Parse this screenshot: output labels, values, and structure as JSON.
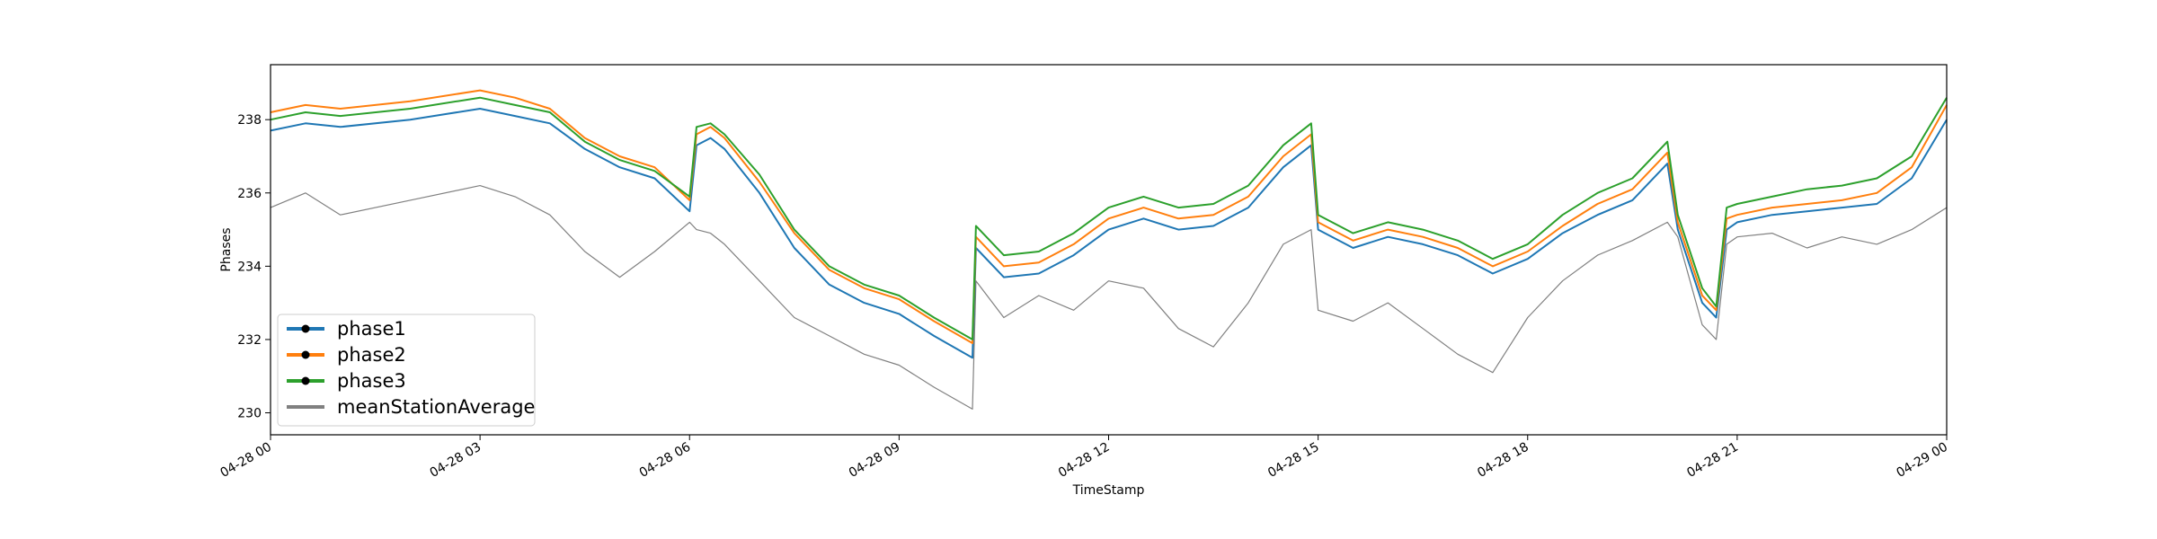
{
  "chart_data": {
    "type": "line",
    "title": "",
    "xlabel": "TimeStamp",
    "ylabel": "Phases",
    "xlim": [
      "04-28 00:00",
      "04-29 00:00"
    ],
    "ylim": [
      229.4,
      239.5
    ],
    "x_ticks": [
      {
        "label": "04-28 00",
        "hour": 0
      },
      {
        "label": "04-28 03",
        "hour": 3
      },
      {
        "label": "04-28 06",
        "hour": 6
      },
      {
        "label": "04-28 09",
        "hour": 9
      },
      {
        "label": "04-28 12",
        "hour": 12
      },
      {
        "label": "04-28 15",
        "hour": 15
      },
      {
        "label": "04-28 18",
        "hour": 18
      },
      {
        "label": "04-28 21",
        "hour": 21
      },
      {
        "label": "04-29 00",
        "hour": 24
      }
    ],
    "y_ticks": [
      230,
      232,
      234,
      236,
      238
    ],
    "x_unit": "hour",
    "grid": false,
    "legend_position": "lower-left",
    "series": [
      {
        "name": "phase1",
        "color": "#1f77b4",
        "marker": "dot",
        "x": [
          0,
          0.5,
          1,
          2,
          3,
          3.5,
          4,
          4.5,
          5,
          5.5,
          6,
          6.1,
          6.3,
          6.5,
          7,
          7.5,
          8,
          8.5,
          9,
          9.5,
          10.05,
          10.1,
          10.5,
          11,
          11.5,
          12,
          12.5,
          13,
          13.5,
          14,
          14.5,
          14.9,
          15,
          15.5,
          16,
          16.5,
          17,
          17.5,
          18,
          18.5,
          19,
          19.5,
          20,
          20.15,
          20.5,
          20.7,
          20.85,
          21,
          21.5,
          22,
          22.5,
          23,
          23.5,
          24
        ],
        "y": [
          237.7,
          237.9,
          237.8,
          238.0,
          238.3,
          238.1,
          237.9,
          237.2,
          236.7,
          236.4,
          235.5,
          237.3,
          237.5,
          237.2,
          236.0,
          234.5,
          233.5,
          233.0,
          232.7,
          232.1,
          231.5,
          234.5,
          233.7,
          233.8,
          234.3,
          235.0,
          235.3,
          235.0,
          235.1,
          235.6,
          236.7,
          237.3,
          235.0,
          234.5,
          234.8,
          234.6,
          234.3,
          233.8,
          234.2,
          234.9,
          235.4,
          235.8,
          236.8,
          235.0,
          233.0,
          232.6,
          235.0,
          235.2,
          235.4,
          235.5,
          235.6,
          235.7,
          236.4,
          238.0
        ]
      },
      {
        "name": "phase2",
        "color": "#ff7f0e",
        "marker": "dot",
        "x": [
          0,
          0.5,
          1,
          2,
          3,
          3.5,
          4,
          4.5,
          5,
          5.5,
          6,
          6.1,
          6.3,
          6.5,
          7,
          7.5,
          8,
          8.5,
          9,
          9.5,
          10.05,
          10.1,
          10.5,
          11,
          11.5,
          12,
          12.5,
          13,
          13.5,
          14,
          14.5,
          14.9,
          15,
          15.5,
          16,
          16.5,
          17,
          17.5,
          18,
          18.5,
          19,
          19.5,
          20,
          20.15,
          20.5,
          20.7,
          20.85,
          21,
          21.5,
          22,
          22.5,
          23,
          23.5,
          24
        ],
        "y": [
          238.2,
          238.4,
          238.3,
          238.5,
          238.8,
          238.6,
          238.3,
          237.5,
          237.0,
          236.7,
          235.8,
          237.6,
          237.8,
          237.5,
          236.3,
          234.9,
          233.9,
          233.4,
          233.1,
          232.5,
          231.9,
          234.8,
          234.0,
          234.1,
          234.6,
          235.3,
          235.6,
          235.3,
          235.4,
          235.9,
          237.0,
          237.6,
          235.2,
          234.7,
          235.0,
          234.8,
          234.5,
          234.0,
          234.4,
          235.1,
          235.7,
          236.1,
          237.1,
          235.2,
          233.2,
          232.8,
          235.3,
          235.4,
          235.6,
          235.7,
          235.8,
          236.0,
          236.7,
          238.4
        ]
      },
      {
        "name": "phase3",
        "color": "#2ca02c",
        "marker": "dot",
        "x": [
          0,
          0.5,
          1,
          2,
          3,
          3.5,
          4,
          4.5,
          5,
          5.5,
          6,
          6.1,
          6.3,
          6.5,
          7,
          7.5,
          8,
          8.5,
          9,
          9.5,
          10.05,
          10.1,
          10.5,
          11,
          11.5,
          12,
          12.5,
          13,
          13.5,
          14,
          14.5,
          14.9,
          15,
          15.5,
          16,
          16.5,
          17,
          17.5,
          18,
          18.5,
          19,
          19.5,
          20,
          20.15,
          20.5,
          20.7,
          20.85,
          21,
          21.5,
          22,
          22.5,
          23,
          23.5,
          24
        ],
        "y": [
          238.0,
          238.2,
          238.1,
          238.3,
          238.6,
          238.4,
          238.2,
          237.4,
          236.9,
          236.6,
          235.9,
          237.8,
          237.9,
          237.6,
          236.5,
          235.0,
          234.0,
          233.5,
          233.2,
          232.6,
          232.0,
          235.1,
          234.3,
          234.4,
          234.9,
          235.6,
          235.9,
          235.6,
          235.7,
          236.2,
          237.3,
          237.9,
          235.4,
          234.9,
          235.2,
          235.0,
          234.7,
          234.2,
          234.6,
          235.4,
          236.0,
          236.4,
          237.4,
          235.4,
          233.4,
          232.9,
          235.6,
          235.7,
          235.9,
          236.1,
          236.2,
          236.4,
          237.0,
          238.6
        ]
      },
      {
        "name": "meanStationAverage",
        "color": "#808080",
        "marker": "none",
        "x": [
          0,
          0.5,
          1,
          2,
          3,
          3.5,
          4,
          4.5,
          5,
          5.5,
          6,
          6.1,
          6.3,
          6.5,
          7,
          7.5,
          8,
          8.5,
          9,
          9.5,
          10.05,
          10.1,
          10.5,
          11,
          11.5,
          12,
          12.5,
          13,
          13.5,
          14,
          14.5,
          14.9,
          15,
          15.5,
          16,
          16.5,
          17,
          17.5,
          18,
          18.5,
          19,
          19.5,
          20,
          20.15,
          20.5,
          20.7,
          20.85,
          21,
          21.5,
          22,
          22.5,
          23,
          23.5,
          24
        ],
        "y": [
          235.6,
          236.0,
          235.4,
          235.8,
          236.2,
          235.9,
          235.4,
          234.4,
          233.7,
          234.4,
          235.2,
          235.0,
          234.9,
          234.6,
          233.6,
          232.6,
          232.1,
          231.6,
          231.3,
          230.7,
          230.1,
          233.6,
          232.6,
          233.2,
          232.8,
          233.6,
          233.4,
          232.3,
          231.8,
          233.0,
          234.6,
          235.0,
          232.8,
          232.5,
          233.0,
          232.3,
          231.6,
          231.1,
          232.6,
          233.6,
          234.3,
          234.7,
          235.2,
          234.8,
          232.4,
          232.0,
          234.6,
          234.8,
          234.9,
          234.5,
          234.8,
          234.6,
          235.0,
          235.6
        ]
      }
    ]
  }
}
